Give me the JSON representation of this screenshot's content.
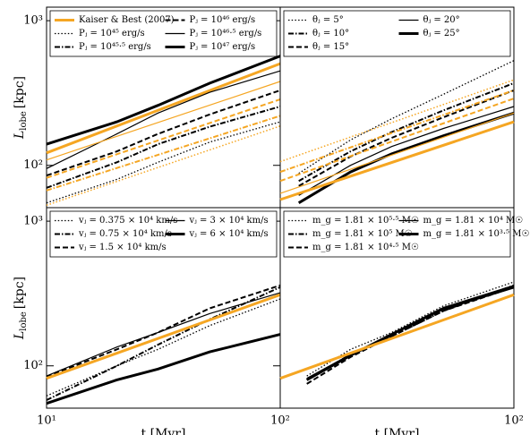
{
  "chart_data": [
    {
      "type": "line",
      "xlog": true,
      "ylog": true,
      "xlim": [
        10,
        100
      ],
      "ylim": [
        51,
        1240
      ],
      "ylabel": {
        "symbol": "L",
        "subscript": "lobe",
        "unit": "[kpc]"
      },
      "yticks": [
        {
          "value": 1000,
          "label": "10³"
        },
        {
          "value": 100,
          "label": "10²"
        }
      ],
      "legend": "upper left",
      "series": [
        {
          "name": "Kaiser & Best (2007)",
          "color": "#f5a623",
          "dash": "solid",
          "width": 3,
          "x": [
            10,
            100
          ],
          "values": [
            122,
            505
          ]
        },
        {
          "name": "Pⱼ = 10⁴⁵ erg/s",
          "color": "#000000",
          "dash": "dotted",
          "width": 1.3,
          "x": [
            10,
            20,
            30,
            50,
            100
          ],
          "values": [
            55,
            80,
            105,
            145,
            200
          ]
        },
        {
          "name": "Pⱼ = 10⁴⁵·⁵ erg/s",
          "color": "#000000",
          "dash": "dashdot",
          "width": 2,
          "x": [
            10,
            20,
            30,
            50,
            100
          ],
          "values": [
            70,
            105,
            140,
            185,
            255
          ]
        },
        {
          "name": "Pⱼ = 10⁴⁶ erg/s",
          "color": "#000000",
          "dash": "dashed",
          "width": 2,
          "x": [
            10,
            20,
            30,
            50,
            100
          ],
          "values": [
            85,
            125,
            165,
            225,
            330
          ]
        },
        {
          "name": "Pⱼ = 10⁴⁶·⁵ erg/s",
          "color": "#000000",
          "dash": "solid",
          "width": 1.2,
          "x": [
            10,
            20,
            30,
            50,
            100
          ],
          "values": [
            95,
            165,
            230,
            320,
            450
          ]
        },
        {
          "name": "Pⱼ = 10⁴⁷ erg/s",
          "color": "#000000",
          "dash": "solid",
          "width": 3,
          "x": [
            10,
            20,
            30,
            50,
            100
          ],
          "values": [
            140,
            200,
            260,
            370,
            570
          ]
        },
        {
          "color": "#f5a623",
          "dash": "solid",
          "width": 1.2,
          "x": [
            10,
            100
          ],
          "values": [
            109,
            380
          ]
        },
        {
          "color": "#f5a623",
          "dash": "dashed",
          "width": 2,
          "x": [
            10,
            100
          ],
          "values": [
            82,
            286
          ]
        },
        {
          "color": "#f5a623",
          "dash": "dashdot",
          "width": 2,
          "x": [
            10,
            100
          ],
          "values": [
            67,
            220
          ]
        },
        {
          "color": "#f5a623",
          "dash": "dotted",
          "width": 1.5,
          "x": [
            10,
            100
          ],
          "values": [
            53,
            187
          ]
        }
      ]
    },
    {
      "type": "line",
      "xlog": true,
      "ylog": true,
      "xlim": [
        10,
        100
      ],
      "ylim": [
        51,
        1240
      ],
      "legend": "upper left",
      "series": [
        {
          "name": "θⱼ = 5°",
          "color": "#000000",
          "dash": "dotted",
          "width": 1.3,
          "x": [
            12,
            20,
            30,
            50,
            100
          ],
          "values": [
            88,
            150,
            210,
            310,
            530
          ]
        },
        {
          "name": "θⱼ = 10°",
          "color": "#000000",
          "dash": "dashdot",
          "width": 2,
          "x": [
            12,
            20,
            30,
            50,
            100
          ],
          "values": [
            78,
            125,
            170,
            240,
            370
          ]
        },
        {
          "name": "θⱼ = 15°",
          "color": "#000000",
          "dash": "dashed",
          "width": 2,
          "x": [
            12,
            20,
            30,
            50,
            100
          ],
          "values": [
            72,
            115,
            155,
            215,
            330
          ]
        },
        {
          "name": "θⱼ = 20°",
          "color": "#000000",
          "dash": "solid",
          "width": 1.2,
          "x": [
            12,
            20,
            30,
            50,
            100
          ],
          "values": [
            62,
            100,
            135,
            180,
            255
          ]
        },
        {
          "name": "θⱼ = 25°",
          "color": "#000000",
          "dash": "solid",
          "width": 3,
          "x": [
            12,
            20,
            30,
            50,
            100
          ],
          "values": [
            55,
            90,
            120,
            160,
            230
          ]
        },
        {
          "color": "#f5a623",
          "dash": "dotted",
          "width": 1.5,
          "x": [
            10,
            100
          ],
          "values": [
            106,
            390
          ]
        },
        {
          "color": "#f5a623",
          "dash": "dashdot",
          "width": 2,
          "x": [
            10,
            100
          ],
          "values": [
            90,
            330
          ]
        },
        {
          "color": "#f5a623",
          "dash": "dashed",
          "width": 2,
          "x": [
            10,
            100
          ],
          "values": [
            78,
            290
          ]
        },
        {
          "color": "#f5a623",
          "dash": "solid",
          "width": 1.2,
          "x": [
            10,
            100
          ],
          "values": [
            64,
            230
          ]
        },
        {
          "color": "#f5a623",
          "dash": "solid",
          "width": 3,
          "x": [
            10,
            100
          ],
          "values": [
            58,
            200
          ]
        }
      ]
    },
    {
      "type": "line",
      "xlog": true,
      "ylog": true,
      "xlim": [
        10,
        100
      ],
      "ylim": [
        51,
        1240
      ],
      "xlabel": "t [Myr]",
      "ylabel": {
        "symbol": "L",
        "subscript": "lobe",
        "unit": "[kpc]"
      },
      "xticks": [
        {
          "value": 10,
          "label": "10¹"
        },
        {
          "value": 100,
          "label": "10²"
        }
      ],
      "yticks": [
        {
          "value": 1000,
          "label": "10³"
        },
        {
          "value": 100,
          "label": "10²"
        }
      ],
      "legend": "upper left",
      "series": [
        {
          "name": "vⱼ = 0.375 × 10⁴ km/s",
          "color": "#000000",
          "dash": "dotted",
          "width": 1.3,
          "x": [
            10,
            20,
            30,
            50,
            100
          ],
          "values": [
            62,
            100,
            130,
            190,
            290
          ]
        },
        {
          "name": "vⱼ = 0.75 × 10⁴ km/s",
          "color": "#000000",
          "dash": "dashdot",
          "width": 2,
          "x": [
            10,
            20,
            30,
            50,
            100
          ],
          "values": [
            58,
            100,
            140,
            210,
            350
          ]
        },
        {
          "name": "vⱼ = 1.5 × 10⁴ km/s",
          "color": "#000000",
          "dash": "dashed",
          "width": 2,
          "x": [
            10,
            20,
            30,
            50,
            100
          ],
          "values": [
            84,
            130,
            170,
            250,
            360
          ]
        },
        {
          "name": "vⱼ = 3 × 10⁴ km/s",
          "color": "#000000",
          "dash": "solid",
          "width": 1.2,
          "x": [
            10,
            20,
            30,
            50,
            100
          ],
          "values": [
            85,
            135,
            170,
            230,
            320
          ]
        },
        {
          "name": "vⱼ = 6 × 10⁴ km/s",
          "color": "#000000",
          "dash": "solid",
          "width": 3,
          "x": [
            10,
            20,
            30,
            50,
            100
          ],
          "values": [
            55,
            80,
            95,
            125,
            165
          ]
        },
        {
          "color": "#f5a623",
          "dash": "solid",
          "width": 3,
          "x": [
            10,
            100
          ],
          "values": [
            82,
            310
          ]
        }
      ]
    },
    {
      "type": "line",
      "xlog": true,
      "ylog": true,
      "xlim": [
        10,
        100
      ],
      "ylim": [
        51,
        1240
      ],
      "xlabel": "t [Myr]",
      "xticks": [
        {
          "value": 100,
          "label": "10²"
        }
      ],
      "legend": "upper left",
      "series": [
        {
          "name": "m_g = 1.81 × 10⁵·⁵ M☉",
          "color": "#000000",
          "dash": "dotted",
          "width": 1.3,
          "x": [
            13,
            20,
            30,
            50,
            100
          ],
          "values": [
            85,
            130,
            170,
            260,
            380
          ]
        },
        {
          "name": "m_g = 1.81 × 10⁵ M☉",
          "color": "#000000",
          "dash": "dashdot",
          "width": 2,
          "x": [
            13,
            20,
            30,
            50,
            100
          ],
          "values": [
            80,
            120,
            160,
            240,
            360
          ]
        },
        {
          "name": "m_g = 1.81 × 10⁴·⁵ M☉",
          "color": "#000000",
          "dash": "dashed",
          "width": 2,
          "x": [
            13,
            20,
            30,
            50,
            100
          ],
          "values": [
            75,
            115,
            160,
            240,
            350
          ]
        },
        {
          "name": "m_g = 1.81 × 10⁴ M☉",
          "color": "#000000",
          "dash": "solid",
          "width": 1.2,
          "x": [
            13,
            20,
            30,
            50,
            100
          ],
          "values": [
            82,
            120,
            165,
            245,
            345
          ]
        },
        {
          "name": "m_g = 1.81 × 10³·⁵ M☉",
          "color": "#000000",
          "dash": "solid",
          "width": 3,
          "x": [
            13,
            20,
            30,
            50,
            100
          ],
          "values": [
            80,
            118,
            165,
            250,
            355
          ]
        },
        {
          "color": "#f5a623",
          "dash": "solid",
          "width": 3,
          "x": [
            10,
            100
          ],
          "values": [
            82,
            310
          ]
        }
      ]
    }
  ]
}
